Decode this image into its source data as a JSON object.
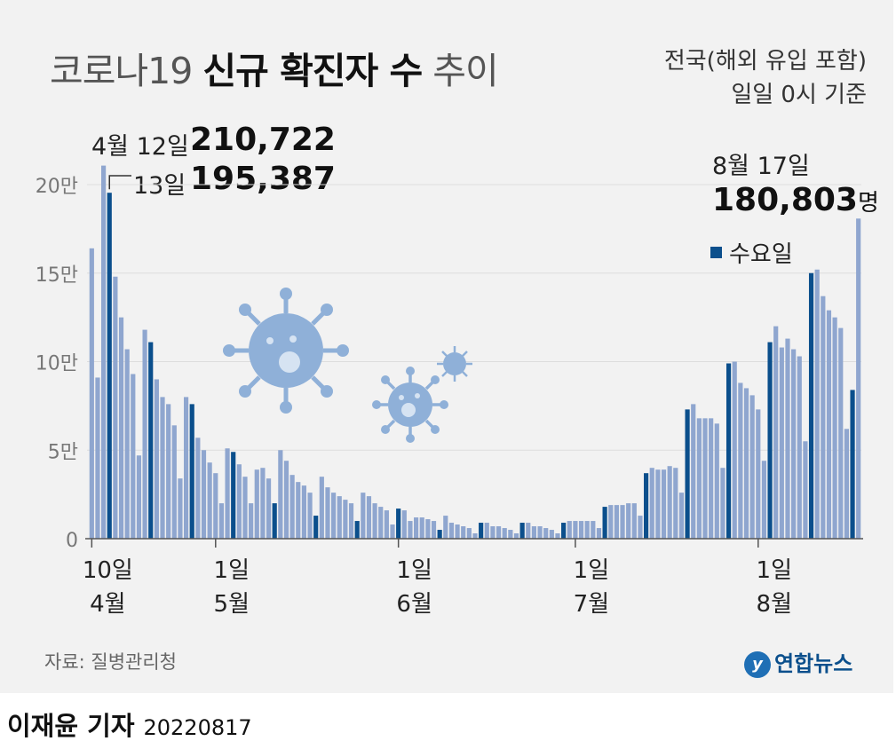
{
  "title": {
    "light1": "코로나19 ",
    "bold": "신규 확진자 수",
    "light2": " 추이"
  },
  "scope_line1": "전국(해외 유입 포함)",
  "scope_line2": "일일 0시 기준",
  "annotations": {
    "peak1_date": "4월 12일",
    "peak1_value": "210,722",
    "peak2_date": "13일",
    "peak2_value": "195,387",
    "last_date": "8월 17일",
    "last_value": "180,803",
    "last_unit": "명"
  },
  "legend_label": "수요일",
  "source": "자료: 질병관리청",
  "byline_name": "이재윤 기자",
  "byline_date": "20220817",
  "logo_text": "연합뉴스",
  "colors": {
    "normal": "#8fa6cf",
    "wednesday": "#0b4f8c",
    "panel": "#f2f2f2",
    "grid": "#dddddd"
  },
  "chart_data": {
    "type": "bar",
    "title": "코로나19 신규 확진자 수 추이",
    "unit": "명",
    "ylim": [
      0,
      200000
    ],
    "y_ticks": [
      {
        "value": 0,
        "label": "0"
      },
      {
        "value": 50000,
        "label": "5만"
      },
      {
        "value": 100000,
        "label": "10만"
      },
      {
        "value": 150000,
        "label": "15만"
      },
      {
        "value": 200000,
        "label": "20만"
      }
    ],
    "x_ticks": [
      {
        "index": 0,
        "day": "10일",
        "month": "4월"
      },
      {
        "index": 21,
        "day": "1일",
        "month": "5월"
      },
      {
        "index": 52,
        "day": "1일",
        "month": "6월"
      },
      {
        "index": 82,
        "day": "1일",
        "month": "7월"
      },
      {
        "index": 113,
        "day": "1일",
        "month": "8월"
      }
    ],
    "start_date": "4월 10일",
    "end_date": "8월 17일",
    "wednesday_offset": 3,
    "values": [
      164000,
      91000,
      210722,
      195387,
      148000,
      125000,
      107000,
      93000,
      47000,
      118000,
      111000,
      90000,
      80000,
      76000,
      64000,
      34000,
      80000,
      76000,
      57000,
      50000,
      43000,
      37000,
      20000,
      51000,
      49000,
      42000,
      35000,
      20000,
      39000,
      40000,
      34000,
      20000,
      50000,
      44000,
      36000,
      32000,
      30000,
      26000,
      13000,
      35000,
      29000,
      26000,
      24000,
      22000,
      20000,
      10000,
      26000,
      24000,
      20000,
      18000,
      16000,
      8000,
      17000,
      16000,
      10000,
      12000,
      12000,
      11000,
      10000,
      5000,
      13000,
      9000,
      8000,
      7000,
      6000,
      3000,
      9000,
      9000,
      7000,
      7000,
      6000,
      5000,
      3000,
      9000,
      9000,
      7000,
      7000,
      6000,
      5000,
      3000,
      9000,
      10000,
      10000,
      10000,
      10000,
      10000,
      6000,
      18000,
      19000,
      19000,
      19000,
      20000,
      20000,
      13000,
      37000,
      40000,
      39000,
      39000,
      41000,
      40000,
      26000,
      73000,
      76000,
      68000,
      68000,
      68000,
      65000,
      40000,
      99000,
      100000,
      88000,
      85000,
      81000,
      73000,
      44000,
      111000,
      120000,
      108000,
      113000,
      107000,
      103000,
      55000,
      150000,
      152000,
      137000,
      129000,
      125000,
      119000,
      62000,
      84000,
      180803
    ]
  }
}
